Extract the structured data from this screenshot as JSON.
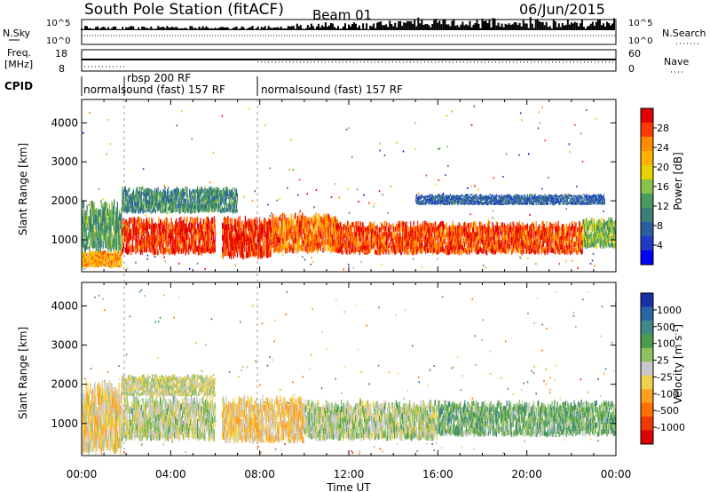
{
  "header": {
    "station": "South Pole Station (fitACF)",
    "beam": "Beam 01",
    "date": "06/Jun/2015"
  },
  "strips": {
    "nsky_label": "N.Sky",
    "nsky_top_tick": "10^5",
    "nsky_bottom_tick": "10^0",
    "nsearch_label": "N.Search",
    "nsearch_top_tick": "10^5",
    "nsearch_bottom_tick": "10^0",
    "freq_label": "Freq.",
    "freq_unit": "[MHz]",
    "freq_top_tick": "18",
    "freq_bottom_tick": "8",
    "nave_label": "Nave",
    "nave_top_tick": "60",
    "nave_bottom_tick": "0",
    "cpid_label": "CPID",
    "cpid_segments": [
      {
        "text": "normalsound (fast) 157 RF"
      },
      {
        "text": "rbsp 200 RF"
      },
      {
        "text": "normalsound (fast) 157 RF"
      }
    ]
  },
  "colorbars": {
    "power": {
      "label": "Power [dB]",
      "ticks": [
        "28",
        "24",
        "20",
        "16",
        "12",
        "8",
        "4"
      ],
      "colors": [
        "#e00000",
        "#ff3a00",
        "#ff8c00",
        "#ffb000",
        "#e8d200",
        "#8bc34a",
        "#4a9a60",
        "#3a7f7a",
        "#2b5ea0",
        "#1e3cc8",
        "#0000ff"
      ]
    },
    "velocity": {
      "label": "Velocity [m s",
      "label_sup": "-1",
      "label_end": "]",
      "ticks": [
        "1000",
        "500",
        "100",
        "25",
        "-25",
        "-100",
        "-500",
        "-1000"
      ],
      "colors": [
        "#1a2fa8",
        "#2a66a6",
        "#3d8a86",
        "#4c9a4e",
        "#8fc060",
        "#c8c8c8",
        "#f0d050",
        "#ffa020",
        "#ff7000",
        "#f03a00",
        "#dd0000"
      ]
    }
  },
  "chart_data": [
    {
      "type": "heatmap",
      "panel": "power",
      "xlabel": "Time UT",
      "ylabel": "Slant Range [km]",
      "xlim": [
        0,
        24
      ],
      "ylim": [
        180,
        4600
      ],
      "x_ticks": [
        "00:00",
        "04:00",
        "08:00",
        "12:00",
        "16:00",
        "20:00",
        "00:00"
      ],
      "y_ticks": [
        "1000",
        "2000",
        "3000",
        "4000"
      ],
      "bands": [
        {
          "t0": 0.0,
          "t1": 1.8,
          "r0": 300,
          "r1": 700,
          "level": 22
        },
        {
          "t0": 0.0,
          "t1": 1.8,
          "r0": 750,
          "r1": 1900,
          "level": 12
        },
        {
          "t0": 1.8,
          "t1": 6.0,
          "r0": 650,
          "r1": 1500,
          "level": 28
        },
        {
          "t0": 1.8,
          "t1": 7.0,
          "r0": 1700,
          "r1": 2300,
          "level": 10
        },
        {
          "t0": 6.3,
          "t1": 8.5,
          "r0": 550,
          "r1": 1500,
          "level": 29
        },
        {
          "t0": 8.5,
          "t1": 11.5,
          "r0": 700,
          "r1": 1600,
          "level": 25
        },
        {
          "t0": 11.5,
          "t1": 22.5,
          "r0": 650,
          "r1": 1400,
          "level": 27
        },
        {
          "t0": 15.0,
          "t1": 23.5,
          "r0": 1900,
          "r1": 2150,
          "level": 6
        },
        {
          "t0": 22.5,
          "t1": 24.0,
          "r0": 800,
          "r1": 1500,
          "level": 14
        }
      ]
    },
    {
      "type": "heatmap",
      "panel": "velocity",
      "xlabel": "Time UT",
      "ylabel": "Slant Range [km]",
      "xlim": [
        0,
        24
      ],
      "ylim": [
        180,
        4600
      ],
      "x_ticks": [
        "00:00",
        "04:00",
        "08:00",
        "12:00",
        "16:00",
        "20:00",
        "00:00"
      ],
      "y_ticks": [
        "1000",
        "2000",
        "3000",
        "4000"
      ],
      "bands": [
        {
          "t0": 0.0,
          "t1": 1.8,
          "r0": 300,
          "r1": 1900,
          "level": -150
        },
        {
          "t0": 1.8,
          "t1": 6.0,
          "r0": 600,
          "r1": 1600,
          "level": 60
        },
        {
          "t0": 1.8,
          "t1": 6.0,
          "r0": 1700,
          "r1": 2200,
          "level": 0
        },
        {
          "t0": 6.3,
          "t1": 10.0,
          "r0": 550,
          "r1": 1600,
          "level": -200
        },
        {
          "t0": 10.0,
          "t1": 16.0,
          "r0": 600,
          "r1": 1500,
          "level": 80
        },
        {
          "t0": 16.0,
          "t1": 24.0,
          "r0": 700,
          "r1": 1500,
          "level": 300
        }
      ]
    }
  ]
}
